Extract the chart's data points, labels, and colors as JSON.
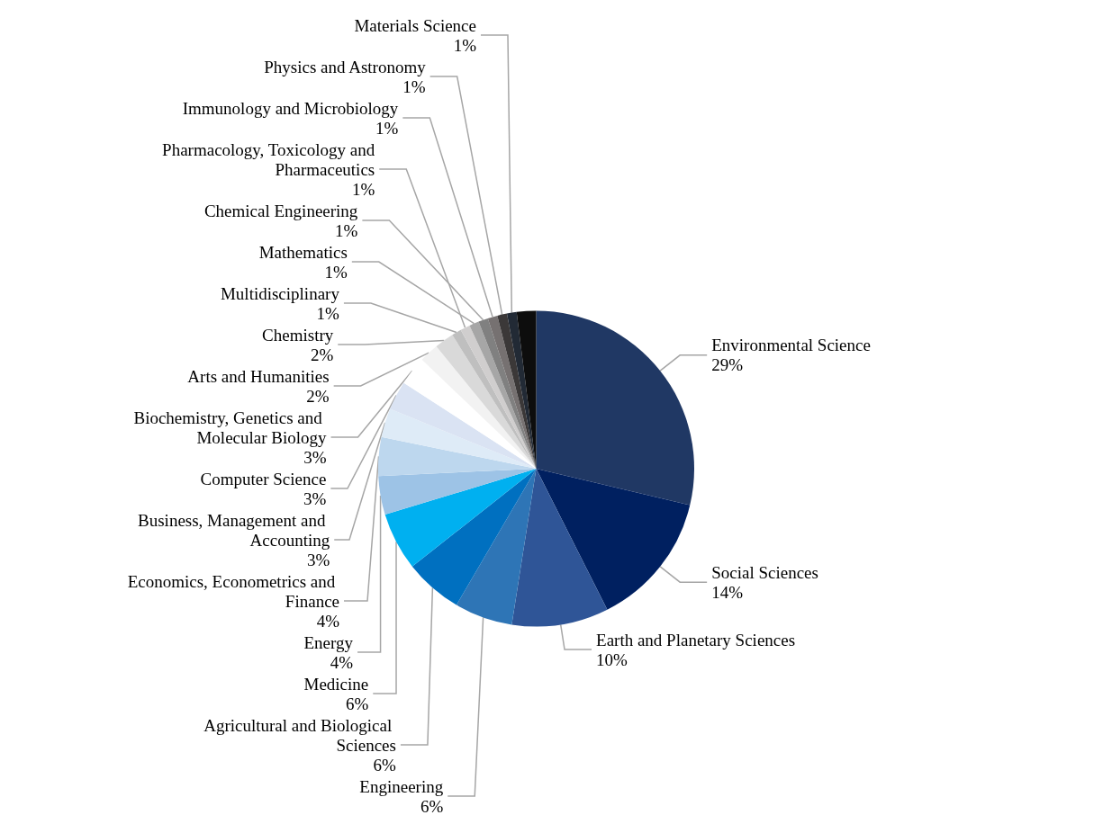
{
  "chart_data": {
    "type": "pie",
    "categories": [
      "Environmental Science",
      "Social Sciences",
      "Earth and Planetary Sciences",
      "Engineering",
      "Agricultural and Biological Sciences",
      "Medicine",
      "Energy",
      "Economics, Econometrics and Finance",
      "Business, Management and Accounting",
      "Computer Science",
      "Biochemistry, Genetics and Molecular Biology",
      "Arts and Humanities",
      "Chemistry",
      "Multidisciplinary",
      "Pharmacology, Toxicology and Pharmaceutics",
      "Mathematics",
      "Chemical Engineering",
      "Immunology and Microbiology",
      "Physics and Astronomy",
      "Materials Science",
      null
    ],
    "values": [
      29,
      14,
      10,
      6,
      6,
      6,
      4,
      4,
      3,
      3,
      3,
      2,
      2,
      1,
      1,
      1,
      1,
      1,
      1,
      1,
      2
    ],
    "value_labels": [
      "29%",
      "14%",
      "10%",
      "6%",
      "6%",
      "6%",
      "4%",
      "4%",
      "3%",
      "3%",
      "3%",
      "2%",
      "2%",
      "1%",
      "1%",
      "1%",
      "1%",
      "1%",
      "1%",
      "1%",
      null
    ],
    "colors": [
      "#203864",
      "#002060",
      "#2f5597",
      "#2e75b6",
      "#0070c0",
      "#00b0f0",
      "#9dc3e6",
      "#bdd7ee",
      "#deebf7",
      "#dae3f3",
      "#ffffff",
      "#f2f2f2",
      "#d9d9d9",
      "#bfbfbf",
      "#d0cece",
      "#a6a6a6",
      "#808080",
      "#767171",
      "#3b3838",
      "#222a35",
      "#0d0d0d"
    ],
    "legend": false
  }
}
